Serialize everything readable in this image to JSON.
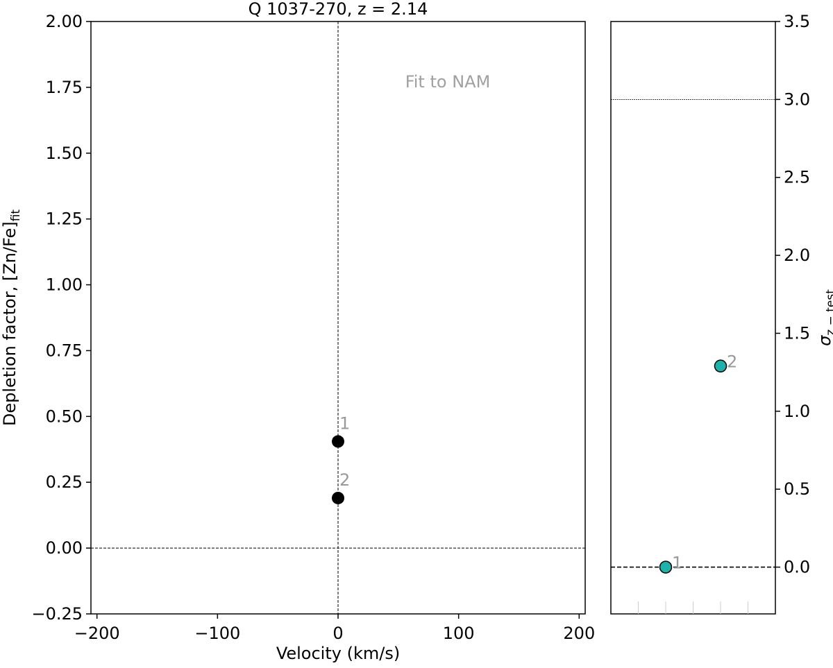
{
  "chart_data": [
    {
      "panel": "left",
      "type": "scatter",
      "title": "Q 1037-270, z = 2.14",
      "xlabel": "Velocity (km/s)",
      "ylabel": "Depletion factor, [Zn/Fe]",
      "ylabel_sub": "fit",
      "annotation": "Fit to NAM",
      "xlim": [
        -205,
        205
      ],
      "ylim": [
        -0.25,
        2.0
      ],
      "xticks": [
        -200,
        -100,
        0,
        100,
        200
      ],
      "xtick_labels": [
        "−200",
        "−100",
        "0",
        "100",
        "200"
      ],
      "yticks": [
        -0.25,
        0,
        0.25,
        0.5,
        0.75,
        1.0,
        1.25,
        1.5,
        1.75,
        2.0
      ],
      "ytick_labels": [
        "−0.25",
        "0.00",
        "0.25",
        "0.50",
        "0.75",
        "1.00",
        "1.25",
        "1.50",
        "1.75",
        "2.00"
      ],
      "reference_lines": {
        "vertical_x": 0,
        "horizontal_y": 0
      },
      "point_color": "#000000",
      "label_color": "#999999",
      "points": [
        {
          "label": "1",
          "x": 0,
          "y": 0.405
        },
        {
          "label": "2",
          "x": 0,
          "y": 0.19
        }
      ]
    },
    {
      "panel": "right",
      "type": "scatter",
      "ylabel": "σ",
      "ylabel_sub": "z − test",
      "ylim": [
        -0.3,
        3.5
      ],
      "yticks": [
        0,
        0.5,
        1.0,
        1.5,
        2.0,
        2.5,
        3.0,
        3.5
      ],
      "ytick_labels": [
        "0.0",
        "0.5",
        "1.0",
        "1.5",
        "2.0",
        "2.5",
        "3.0",
        "3.5"
      ],
      "reference_lines": {
        "dashed_y": 0,
        "dotted_y": 3.0
      },
      "point_color": "#20b2aa",
      "label_color": "#999999",
      "points": [
        {
          "label": "1",
          "x": 2,
          "y": 0.0
        },
        {
          "label": "2",
          "x": 4,
          "y": 1.29
        }
      ],
      "xlim": [
        0,
        6
      ]
    }
  ]
}
